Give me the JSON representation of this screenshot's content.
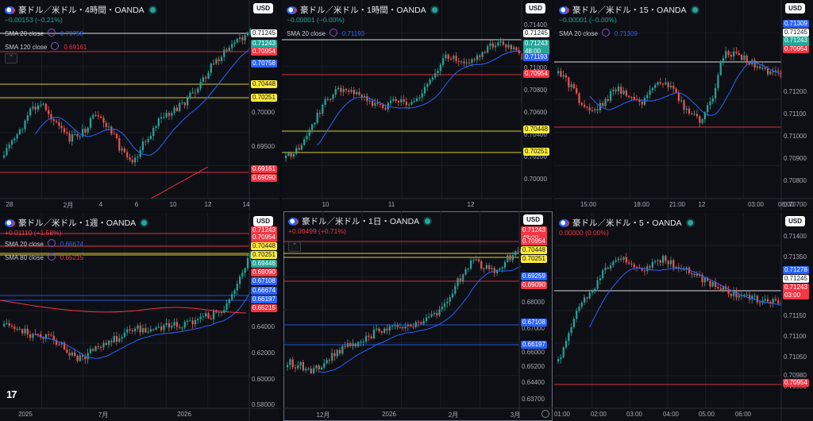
{
  "colors": {
    "up": "#26a69a",
    "down": "#ef5350",
    "sma20": "#2962ff",
    "sma120": "#f23645",
    "yellow": "#ffeb3b",
    "white": "#ffffff"
  },
  "panels": [
    {
      "title": "豪ドル／米ドル・4時間・OANDA",
      "change": "−0.00153 (−0.21%)",
      "change_color": "#26a69a",
      "currency": "USD",
      "indicators": [
        {
          "label": "SMA 20 close",
          "value": "0.70758",
          "color": "#2962ff"
        },
        {
          "label": "SMA 120 close",
          "value": "0.69161",
          "color": "#f23645"
        }
      ],
      "y_axis": [
        "0.70000",
        "0.69500"
      ],
      "x_axis": [
        "28",
        "2月",
        "4",
        "6",
        "10",
        "12",
        "14"
      ],
      "tags": [
        {
          "text": "0.71245",
          "bg": "#ffffff",
          "fg": "#131722"
        },
        {
          "text": "0.71243\n47:59",
          "bg": "#26a69a",
          "fg": "#ffffff"
        },
        {
          "text": "0.70954",
          "bg": "#f23645",
          "fg": "#ffffff"
        },
        {
          "text": "0.70758",
          "bg": "#2962ff",
          "fg": "#ffffff"
        },
        {
          "text": "0.70448",
          "bg": "#ffeb3b",
          "fg": "#131722"
        },
        {
          "text": "0.70251",
          "bg": "#ffeb3b",
          "fg": "#131722"
        },
        {
          "text": "0.69161",
          "bg": "#f23645",
          "fg": "#ffffff"
        },
        {
          "text": "0.69090",
          "bg": "#f23645",
          "fg": "#ffffff"
        }
      ]
    },
    {
      "title": "豪ドル／米ドル・1時間・OANDA",
      "change": "−0.00001 (−0.00%)",
      "change_color": "#26a69a",
      "currency": "USD",
      "indicators": [
        {
          "label": "SMA 20 close",
          "value": "0.71193",
          "color": "#2962ff"
        }
      ],
      "y_axis": [
        "0.71400",
        "0.71000",
        "0.70800",
        "0.70600",
        "0.70400",
        "0.70200",
        "0.70000"
      ],
      "x_axis": [
        "10",
        "11",
        "12"
      ],
      "tags": [
        {
          "text": "0.71245",
          "bg": "#ffffff",
          "fg": "#131722"
        },
        {
          "text": "0.71243\n48:00",
          "bg": "#26a69a",
          "fg": "#ffffff"
        },
        {
          "text": "0.71193",
          "bg": "#2962ff",
          "fg": "#ffffff"
        },
        {
          "text": "0.70954",
          "bg": "#f23645",
          "fg": "#ffffff"
        },
        {
          "text": "0.70448",
          "bg": "#ffeb3b",
          "fg": "#131722"
        },
        {
          "text": "0.70251",
          "bg": "#ffeb3b",
          "fg": "#131722"
        }
      ]
    },
    {
      "title": "豪ドル／米ドル・15・OANDA",
      "change": "−0.00001 (−0.00%)",
      "change_color": "#26a69a",
      "currency": "USD",
      "indicators": [
        {
          "label": "SMA 20 close",
          "value": "0.71309",
          "color": "#2962ff"
        }
      ],
      "y_axis": [
        "0.71400",
        "0.71200",
        "0.71100",
        "0.71000",
        "0.70900",
        "0.70800",
        "0.70700"
      ],
      "x_axis": [
        "15:00",
        "18:00",
        "21:00",
        "12",
        "03:00",
        "06:00"
      ],
      "tags": [
        {
          "text": "0.71309",
          "bg": "#2962ff",
          "fg": "#ffffff"
        },
        {
          "text": "0.71245",
          "bg": "#ffffff",
          "fg": "#131722"
        },
        {
          "text": "0.71243\n03:00",
          "bg": "#26a69a",
          "fg": "#ffffff"
        },
        {
          "text": "0.70954",
          "bg": "#f23645",
          "fg": "#ffffff"
        }
      ]
    },
    {
      "title": "豪ドル／米ドル・1週・OANDA",
      "change": "+0.01110 (+1.58%)",
      "change_color": "#f23645",
      "currency": "USD",
      "indicators": [
        {
          "label": "SMA 20 close",
          "value": "0.66674",
          "color": "#2962ff"
        },
        {
          "label": "SMA 80 close",
          "value": "0.65215",
          "color": "#f23645"
        }
      ],
      "y_axis": [
        "0.64000",
        "0.62000",
        "0.60000",
        "0.58000"
      ],
      "x_axis": [
        "2025",
        "7月",
        "2026"
      ],
      "tags": [
        {
          "text": "0.71243\n2d 1h",
          "bg": "#f23645",
          "fg": "#ffffff"
        },
        {
          "text": "0.70954",
          "bg": "#f23645",
          "fg": "#ffffff"
        },
        {
          "text": "0.70448",
          "bg": "#ffeb3b",
          "fg": "#131722"
        },
        {
          "text": "0.70251",
          "bg": "#ffeb3b",
          "fg": "#131722"
        },
        {
          "text": "0.69446",
          "bg": "#26a69a",
          "fg": "#ffffff"
        },
        {
          "text": "0.69090",
          "bg": "#f23645",
          "fg": "#ffffff"
        },
        {
          "text": "0.67108",
          "bg": "#2962ff",
          "fg": "#ffffff"
        },
        {
          "text": "0.66674",
          "bg": "#2962ff",
          "fg": "#ffffff"
        },
        {
          "text": "0.66197",
          "bg": "#2962ff",
          "fg": "#ffffff"
        },
        {
          "text": "0.65215",
          "bg": "#f23645",
          "fg": "#ffffff"
        }
      ]
    },
    {
      "title": "豪ドル／米ドル・1日・OANDA",
      "change": "+0.00499 (+0.71%)",
      "change_color": "#f23645",
      "currency": "USD",
      "indicators": [],
      "y_axis": [
        "0.68000",
        "0.67000",
        "0.66000",
        "0.65200",
        "0.64400",
        "0.63700"
      ],
      "x_axis": [
        "12月",
        "2026",
        "2月",
        "3月"
      ],
      "tags": [
        {
          "text": "0.71243\n48:00",
          "bg": "#f23645",
          "fg": "#ffffff"
        },
        {
          "text": "0.70954",
          "bg": "#f23645",
          "fg": "#ffffff"
        },
        {
          "text": "0.70448",
          "bg": "#ffeb3b",
          "fg": "#131722"
        },
        {
          "text": "0.70251",
          "bg": "#ffeb3b",
          "fg": "#131722"
        },
        {
          "text": "0.69259",
          "bg": "#2962ff",
          "fg": "#ffffff"
        },
        {
          "text": "0.69090",
          "bg": "#f23645",
          "fg": "#ffffff"
        },
        {
          "text": "0.67108",
          "bg": "#2962ff",
          "fg": "#ffffff"
        },
        {
          "text": "0.66197",
          "bg": "#2962ff",
          "fg": "#ffffff"
        }
      ]
    },
    {
      "title": "豪ドル／米ドル・5・OANDA",
      "change": "0.00000 (0.00%)",
      "change_color": "#f23645",
      "currency": "USD",
      "indicators": [],
      "y_axis": [
        "0.71400",
        "0.71350",
        "0.71300",
        "0.71150",
        "0.71100",
        "0.71050",
        "0.70980",
        "0.70930"
      ],
      "x_axis": [
        "01:00",
        "02:00",
        "03:00",
        "04:00",
        "05:00",
        "06:00"
      ],
      "tags": [
        {
          "text": "0.71278",
          "bg": "#2962ff",
          "fg": "#ffffff"
        },
        {
          "text": "0.71245",
          "bg": "#ffffff",
          "fg": "#131722"
        },
        {
          "text": "0.71243\n03:00",
          "bg": "#f23645",
          "fg": "#ffffff"
        },
        {
          "text": "0.70954",
          "bg": "#f23645",
          "fg": "#ffffff"
        }
      ]
    }
  ]
}
